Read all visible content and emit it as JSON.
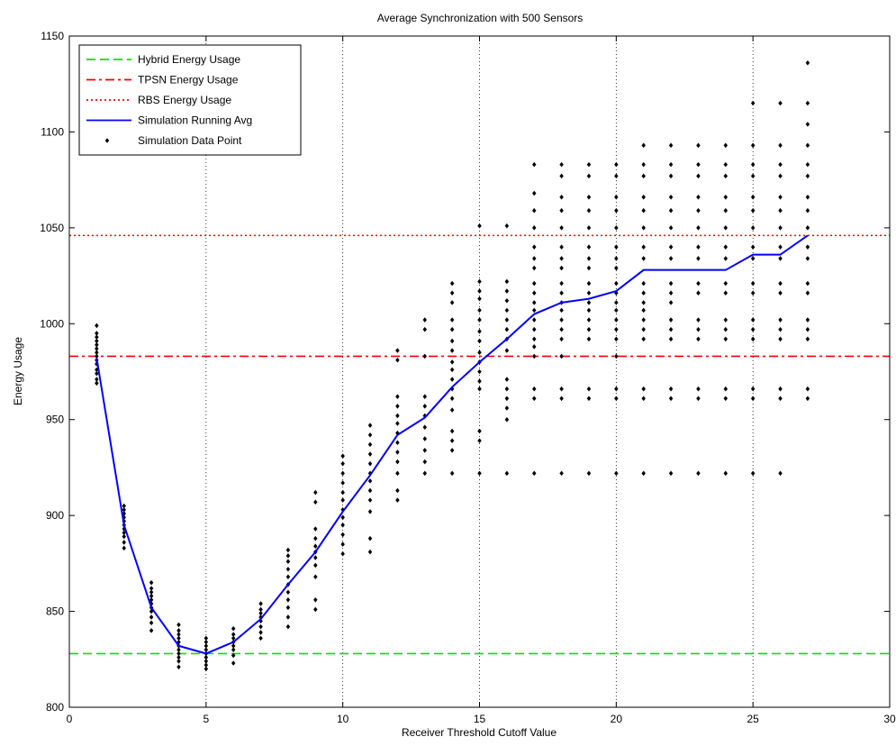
{
  "chart_data": {
    "type": "scatter",
    "title": "Average Synchronization with 500 Sensors",
    "xlabel": "Receiver Threshold Cutoff Value",
    "ylabel": "Energy Usage",
    "xlim": [
      0,
      30
    ],
    "ylim": [
      800,
      1150
    ],
    "xticks": [
      0,
      5,
      10,
      15,
      20,
      25,
      30
    ],
    "yticks": [
      800,
      850,
      900,
      950,
      1000,
      1050,
      1100,
      1150
    ],
    "xgrid": "dotted",
    "ygrid": "none",
    "legend_position": "top-left",
    "reference_lines": [
      {
        "name": "Hybrid Energy Usage",
        "y": 828,
        "style": "dashed",
        "color": "#00e600"
      },
      {
        "name": "TPSN Energy Usage",
        "y": 983,
        "style": "dashdot",
        "color": "#ff0000"
      },
      {
        "name": "RBS Energy Usage",
        "y": 1046,
        "style": "dotted",
        "color": "#ff0000"
      }
    ],
    "running_avg": {
      "name": "Simulation Running Avg",
      "color": "#0000ff",
      "x": [
        1,
        2,
        3,
        4,
        5,
        6,
        7,
        8,
        9,
        10,
        11,
        12,
        13,
        14,
        15,
        16,
        17,
        18,
        19,
        20,
        21,
        22,
        23,
        24,
        25,
        26,
        27
      ],
      "y": [
        982,
        895,
        852,
        832,
        828,
        834,
        846,
        864,
        881,
        902,
        921,
        942,
        951,
        967,
        980,
        992,
        1005,
        1011,
        1013,
        1017,
        1028,
        1028,
        1028,
        1028,
        1036,
        1036,
        1046
      ]
    },
    "data_points": {
      "name": "Simulation Data Point",
      "color": "#000000",
      "groups": [
        {
          "x": 1,
          "y": [
            969,
            971,
            974,
            976,
            979,
            981,
            983,
            985,
            987,
            989,
            991,
            993,
            995,
            999
          ]
        },
        {
          "x": 2,
          "y": [
            883,
            886,
            889,
            891,
            893,
            895,
            897,
            899,
            901,
            903,
            905
          ]
        },
        {
          "x": 3,
          "y": [
            840,
            844,
            847,
            850,
            852,
            854,
            856,
            858,
            860,
            862,
            865
          ]
        },
        {
          "x": 4,
          "y": [
            821,
            824,
            826,
            828,
            830,
            832,
            834,
            836,
            838,
            840,
            843
          ]
        },
        {
          "x": 5,
          "y": [
            820,
            822,
            824,
            826,
            828,
            830,
            832,
            834,
            836
          ]
        },
        {
          "x": 6,
          "y": [
            823,
            827,
            830,
            832,
            834,
            836,
            838,
            841
          ]
        },
        {
          "x": 7,
          "y": [
            836,
            839,
            842,
            845,
            847,
            849,
            851,
            854
          ]
        },
        {
          "x": 8,
          "y": [
            842,
            847,
            852,
            856,
            860,
            864,
            868,
            872,
            876,
            879,
            882
          ]
        },
        {
          "x": 9,
          "y": [
            851,
            856,
            868,
            874,
            878,
            881,
            884,
            888,
            893,
            907,
            912
          ]
        },
        {
          "x": 10,
          "y": [
            880,
            885,
            890,
            895,
            899,
            903,
            908,
            912,
            917,
            922,
            927,
            931
          ]
        },
        {
          "x": 11,
          "y": [
            881,
            888,
            902,
            908,
            913,
            918,
            922,
            927,
            932,
            937,
            942,
            947
          ]
        },
        {
          "x": 12,
          "y": [
            908,
            913,
            922,
            928,
            933,
            938,
            943,
            948,
            952,
            957,
            962,
            981,
            986
          ]
        },
        {
          "x": 13,
          "y": [
            922,
            928,
            934,
            940,
            946,
            952,
            957,
            962,
            983,
            997,
            1002
          ]
        },
        {
          "x": 14,
          "y": [
            922,
            934,
            939,
            944,
            955,
            961,
            966,
            971,
            976,
            980,
            986,
            991,
            997,
            1002,
            1011,
            1016,
            1021
          ]
        },
        {
          "x": 15,
          "y": [
            922,
            939,
            944,
            966,
            970,
            975,
            980,
            985,
            991,
            996,
            1002,
            1007,
            1013,
            1017,
            1022,
            1051
          ]
        },
        {
          "x": 16,
          "y": [
            922,
            950,
            956,
            961,
            966,
            971,
            986,
            992,
            997,
            1002,
            1007,
            1012,
            1017,
            1022,
            1051
          ]
        },
        {
          "x": 17,
          "y": [
            922,
            961,
            966,
            983,
            988,
            992,
            997,
            1002,
            1007,
            1011,
            1016,
            1021,
            1029,
            1034,
            1040,
            1050,
            1059,
            1068,
            1083
          ]
        },
        {
          "x": 18,
          "y": [
            922,
            961,
            966,
            983,
            992,
            997,
            1002,
            1007,
            1011,
            1016,
            1021,
            1029,
            1034,
            1040,
            1050,
            1059,
            1066,
            1077,
            1083
          ]
        },
        {
          "x": 19,
          "y": [
            922,
            961,
            966,
            992,
            997,
            1002,
            1007,
            1011,
            1016,
            1021,
            1029,
            1034,
            1040,
            1050,
            1059,
            1066,
            1077,
            1083
          ]
        },
        {
          "x": 20,
          "y": [
            922,
            961,
            966,
            983,
            992,
            997,
            1002,
            1007,
            1011,
            1016,
            1021,
            1029,
            1034,
            1040,
            1050,
            1059,
            1066,
            1077,
            1083
          ]
        },
        {
          "x": 21,
          "y": [
            922,
            961,
            966,
            992,
            997,
            1002,
            1007,
            1011,
            1016,
            1021,
            1034,
            1040,
            1050,
            1059,
            1066,
            1077,
            1083,
            1093
          ]
        },
        {
          "x": 22,
          "y": [
            922,
            961,
            966,
            992,
            997,
            1002,
            1011,
            1016,
            1021,
            1034,
            1040,
            1050,
            1059,
            1066,
            1077,
            1083,
            1093
          ]
        },
        {
          "x": 23,
          "y": [
            922,
            961,
            966,
            992,
            997,
            1002,
            1016,
            1021,
            1034,
            1040,
            1050,
            1059,
            1066,
            1077,
            1083,
            1093
          ]
        },
        {
          "x": 24,
          "y": [
            922,
            961,
            966,
            992,
            997,
            1002,
            1016,
            1021,
            1034,
            1040,
            1050,
            1059,
            1066,
            1077,
            1083,
            1093
          ]
        },
        {
          "x": 25,
          "y": [
            922,
            961,
            966,
            992,
            997,
            1002,
            1016,
            1021,
            1034,
            1040,
            1050,
            1059,
            1066,
            1077,
            1083,
            1093,
            1115
          ]
        },
        {
          "x": 26,
          "y": [
            922,
            961,
            966,
            992,
            997,
            1002,
            1016,
            1021,
            1034,
            1040,
            1050,
            1059,
            1066,
            1077,
            1083,
            1093,
            1115
          ]
        },
        {
          "x": 27,
          "y": [
            961,
            966,
            992,
            997,
            1002,
            1016,
            1021,
            1034,
            1040,
            1050,
            1059,
            1066,
            1077,
            1083,
            1093,
            1104,
            1115,
            1136
          ]
        }
      ]
    },
    "legend": [
      {
        "label": "Hybrid Energy Usage",
        "style": "dashed",
        "color": "#00e600"
      },
      {
        "label": "TPSN Energy Usage",
        "style": "dashdot",
        "color": "#ff0000"
      },
      {
        "label": "RBS Energy Usage",
        "style": "dotted",
        "color": "#ff0000"
      },
      {
        "label": "Simulation Running Avg",
        "style": "solid",
        "color": "#0000ff"
      },
      {
        "label": "Simulation Data Point",
        "style": "marker",
        "color": "#000000"
      }
    ]
  }
}
